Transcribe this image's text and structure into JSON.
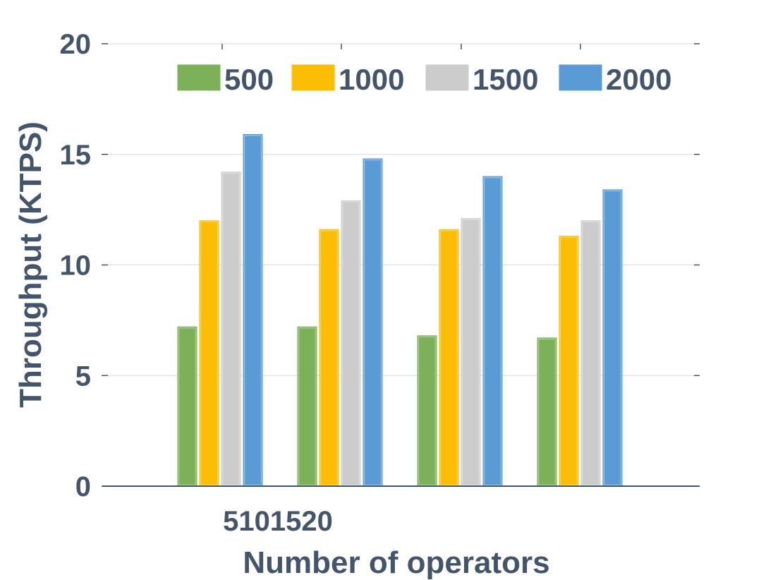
{
  "chart_data": {
    "type": "bar",
    "categories": [
      "5",
      "10",
      "15",
      "20"
    ],
    "category_tick_text": "5101520",
    "series": [
      {
        "name": "500",
        "color": "#7cb15a",
        "values": [
          7.2,
          7.2,
          6.8,
          6.7
        ]
      },
      {
        "name": "1000",
        "color": "#fbbd06",
        "values": [
          12.0,
          11.6,
          11.6,
          11.3
        ]
      },
      {
        "name": "1500",
        "color": "#cccccc",
        "values": [
          14.2,
          12.9,
          12.1,
          12.0
        ]
      },
      {
        "name": "2000",
        "color": "#5b9bd5",
        "values": [
          15.9,
          14.8,
          14.0,
          13.4
        ]
      }
    ],
    "title": "",
    "xlabel": "Number of operators",
    "ylabel": "Throughput (KTPS)",
    "ylim": [
      0,
      20
    ],
    "yticks": [
      "0",
      "5",
      "10",
      "15",
      "20"
    ],
    "grid": true,
    "legend_position": "top",
    "text_color": "#44546a",
    "grid_color": "#d9d9d9",
    "axis_color": "#44546a"
  }
}
